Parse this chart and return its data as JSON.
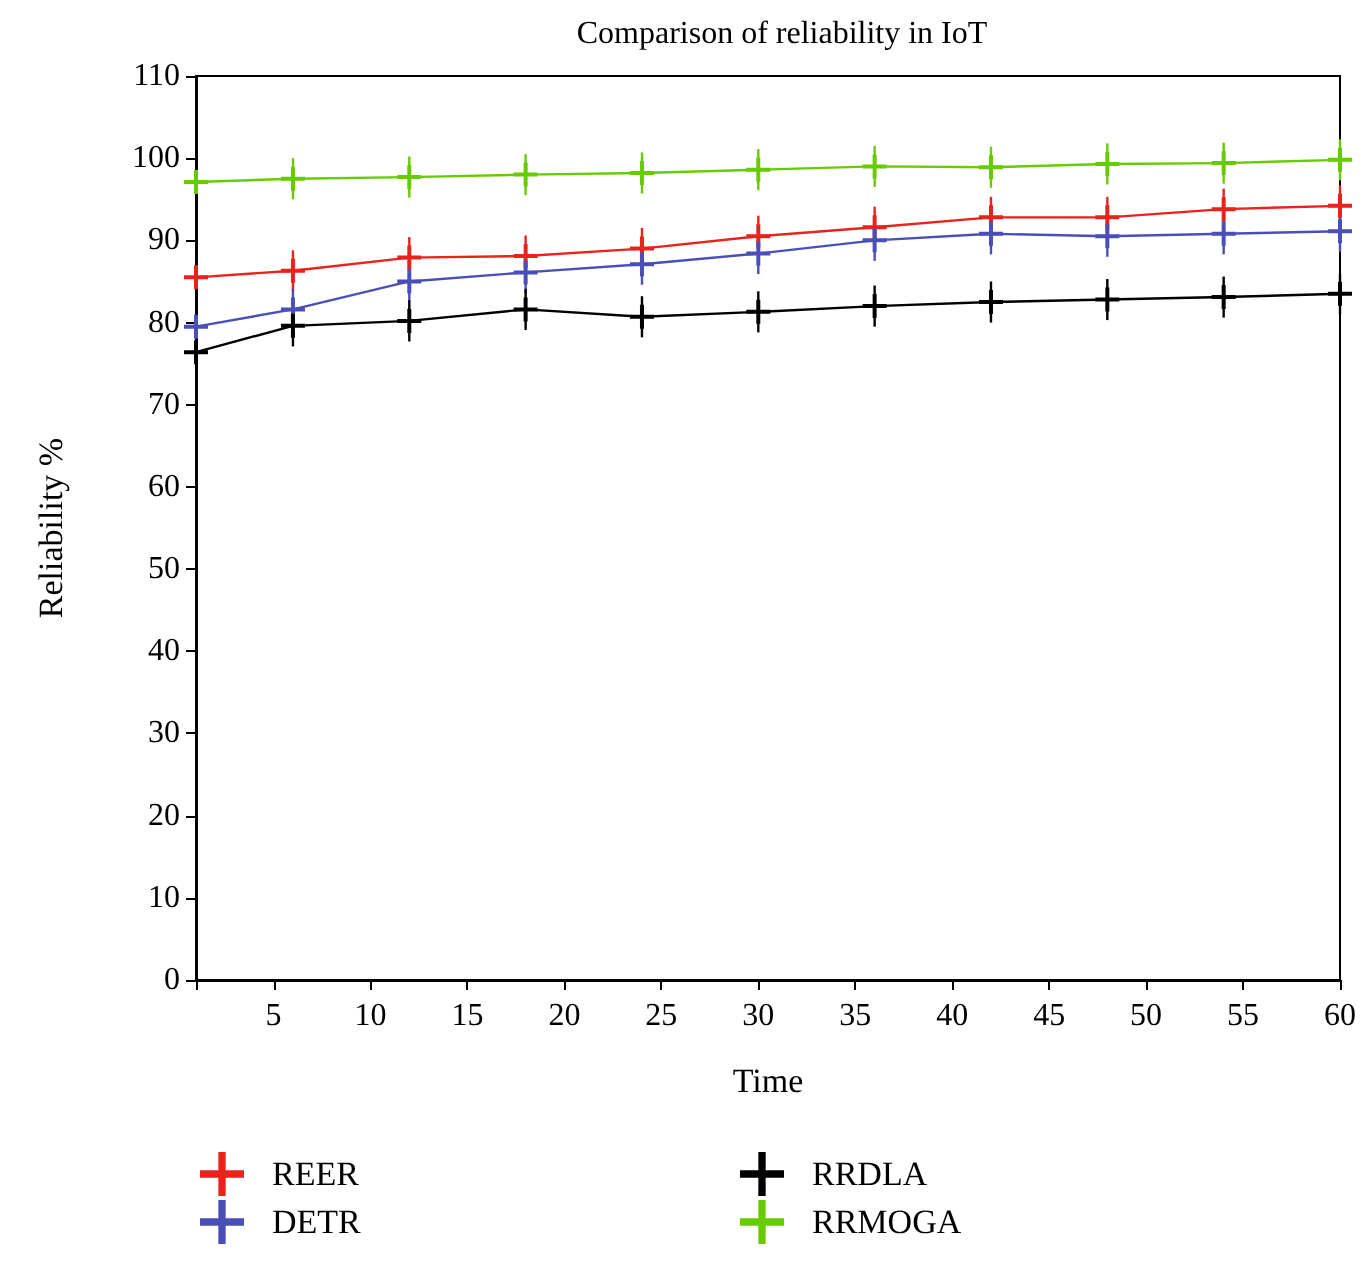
{
  "chart_data": {
    "type": "line",
    "title": "Comparison of reliability in IoT",
    "xlabel": "Time",
    "ylabel": "Reliability %",
    "x": [
      1,
      6,
      12,
      18,
      24,
      30,
      36,
      42,
      48,
      54,
      60
    ],
    "series": [
      {
        "name": "REER",
        "color": "#e8231c",
        "values": [
          85.5,
          86.3,
          87.9,
          88.1,
          89.0,
          90.5,
          91.6,
          92.8,
          92.8,
          93.8,
          94.2
        ],
        "errors": [
          null,
          2.5,
          2.5,
          2.5,
          2.5,
          2.5,
          2.5,
          2.5,
          2.5,
          2.5,
          2.5
        ]
      },
      {
        "name": "DETR",
        "color": "#4a4fb8",
        "values": [
          79.5,
          81.6,
          85.0,
          86.1,
          87.1,
          88.4,
          90.0,
          90.8,
          90.5,
          90.8,
          91.1
        ],
        "errors": [
          null,
          2.5,
          2.5,
          2.5,
          2.5,
          2.5,
          2.5,
          2.5,
          2.5,
          2.5,
          2.5
        ]
      },
      {
        "name": "RRDLA",
        "color": "#000000",
        "values": [
          76.4,
          79.6,
          80.2,
          81.6,
          80.7,
          81.3,
          82.0,
          82.5,
          82.8,
          83.1,
          83.5
        ],
        "errors": [
          null,
          2.5,
          2.5,
          2.5,
          2.5,
          2.5,
          2.5,
          2.5,
          2.5,
          2.5,
          2.5
        ]
      },
      {
        "name": "RRMOGA",
        "color": "#66cc00",
        "values": [
          97.1,
          97.5,
          97.7,
          98.0,
          98.2,
          98.6,
          99.0,
          98.9,
          99.3,
          99.4,
          99.8
        ],
        "errors": [
          null,
          2.5,
          2.5,
          2.5,
          2.5,
          2.5,
          2.5,
          2.5,
          2.5,
          2.5,
          2.5
        ]
      }
    ],
    "xlim": [
      1,
      60
    ],
    "xticks": [
      {
        "value": 1,
        "label": null
      },
      5,
      10,
      15,
      20,
      25,
      30,
      35,
      40,
      45,
      50,
      55,
      60
    ],
    "ylim": [
      0,
      110
    ],
    "yticks": [
      0,
      10,
      20,
      30,
      40,
      50,
      60,
      70,
      80,
      90,
      100,
      110
    ],
    "grid": false,
    "legend": "bottom",
    "marker": "cross",
    "line_style": "solid"
  }
}
